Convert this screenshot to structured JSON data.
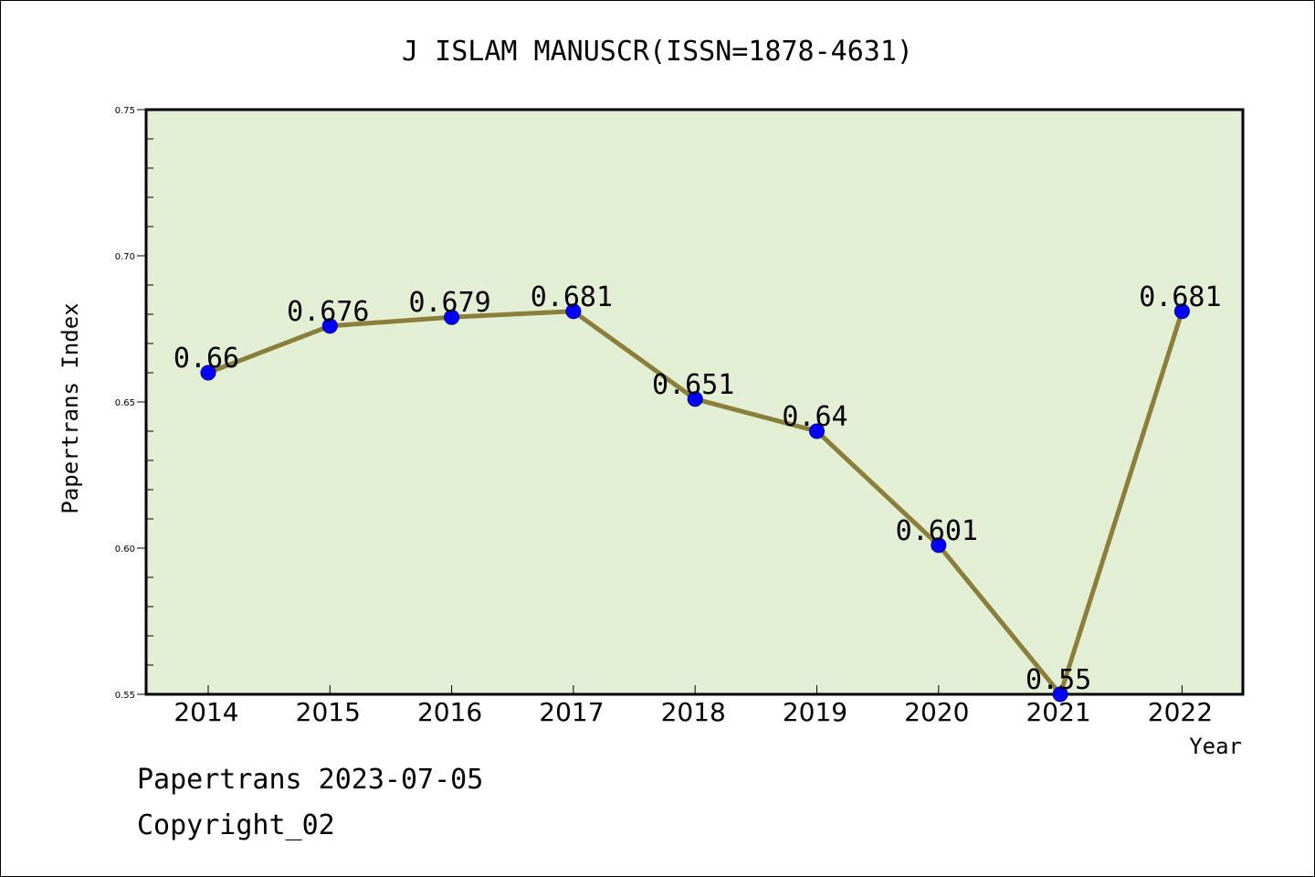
{
  "chart_data": {
    "type": "line",
    "title": "J ISLAM MANUSCR(ISSN=1878-4631)",
    "xlabel": "Year",
    "ylabel": "Papertrans Index",
    "categories": [
      "2014",
      "2015",
      "2016",
      "2017",
      "2018",
      "2019",
      "2020",
      "2021",
      "2022"
    ],
    "values": [
      0.66,
      0.676,
      0.679,
      0.681,
      0.651,
      0.64,
      0.601,
      0.55,
      0.681
    ],
    "data_labels": [
      "0.66",
      "0.676",
      "0.679",
      "0.681",
      "0.651",
      "0.64",
      "0.601",
      "0.55",
      "0.681"
    ],
    "ylim": [
      0.55,
      0.75
    ],
    "yticks": [
      "0.55",
      "0.60",
      "0.65",
      "0.70",
      "0.75"
    ],
    "grid": false,
    "colors": {
      "plot_background": "#e2efd4",
      "line": "#8b7d3a",
      "marker": "#0000ff"
    }
  },
  "footer": {
    "date_line": "Papertrans 2023-07-05",
    "copyright_line": "Copyright_02"
  }
}
